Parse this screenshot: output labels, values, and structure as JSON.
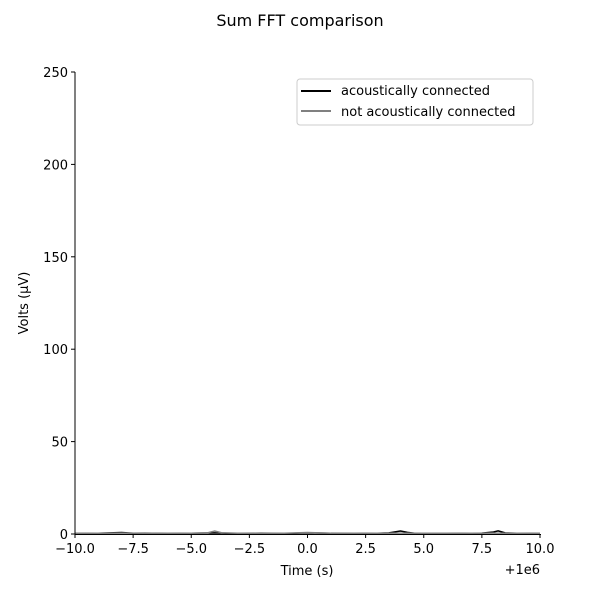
{
  "chart_data": {
    "type": "line",
    "title": "Sum FFT comparison",
    "xlabel": "Time (s)",
    "ylabel": "Volts (µV)",
    "x_offset_label": "+1e6",
    "xlim": [
      -10.0,
      10.0
    ],
    "ylim": [
      0,
      250
    ],
    "xticks": [
      -10.0,
      -7.5,
      -5.0,
      -2.5,
      0.0,
      2.5,
      5.0,
      7.5,
      10.0
    ],
    "xtick_labels": [
      "−10.0",
      "−7.5",
      "−5.0",
      "−2.5",
      "0.0",
      "2.5",
      "5.0",
      "7.5",
      "10.0"
    ],
    "yticks": [
      0,
      50,
      100,
      150,
      200,
      250
    ],
    "ytick_labels": [
      "0",
      "50",
      "100",
      "150",
      "200",
      "250"
    ],
    "grid": false,
    "legend_position": "top-right",
    "series": [
      {
        "name": "acoustically connected",
        "color": "#000000",
        "x": [
          -10.0,
          -9.0,
          -8.0,
          -7.5,
          -7.0,
          -6.0,
          -5.0,
          -4.0,
          -3.5,
          -3.0,
          -2.0,
          -1.0,
          0.0,
          1.0,
          2.0,
          3.0,
          3.5,
          4.0,
          4.3,
          4.6,
          5.0,
          6.0,
          7.0,
          7.5,
          8.0,
          8.2,
          8.5,
          9.0,
          10.0
        ],
        "values": [
          0.3,
          0.4,
          0.8,
          0.4,
          0.5,
          0.3,
          0.4,
          0.6,
          0.4,
          0.3,
          0.4,
          0.3,
          0.6,
          0.4,
          0.3,
          0.4,
          0.6,
          1.6,
          0.9,
          0.4,
          0.3,
          0.3,
          0.4,
          0.5,
          1.1,
          1.7,
          0.6,
          0.4,
          0.3
        ]
      },
      {
        "name": "not acoustically connected",
        "color": "#808080",
        "x": [
          -10.0,
          -9.0,
          -8.0,
          -7.0,
          -6.0,
          -5.0,
          -4.3,
          -4.0,
          -3.7,
          -3.0,
          -2.0,
          -1.0,
          0.0,
          1.0,
          2.0,
          3.0,
          4.0,
          5.0,
          6.0,
          7.0,
          8.0,
          9.0,
          10.0
        ],
        "values": [
          0.3,
          0.4,
          0.5,
          0.4,
          0.3,
          0.4,
          0.6,
          1.6,
          0.7,
          0.4,
          0.3,
          0.4,
          0.8,
          0.4,
          0.3,
          0.4,
          0.5,
          0.4,
          0.3,
          0.4,
          0.5,
          0.4,
          0.3
        ]
      }
    ]
  }
}
